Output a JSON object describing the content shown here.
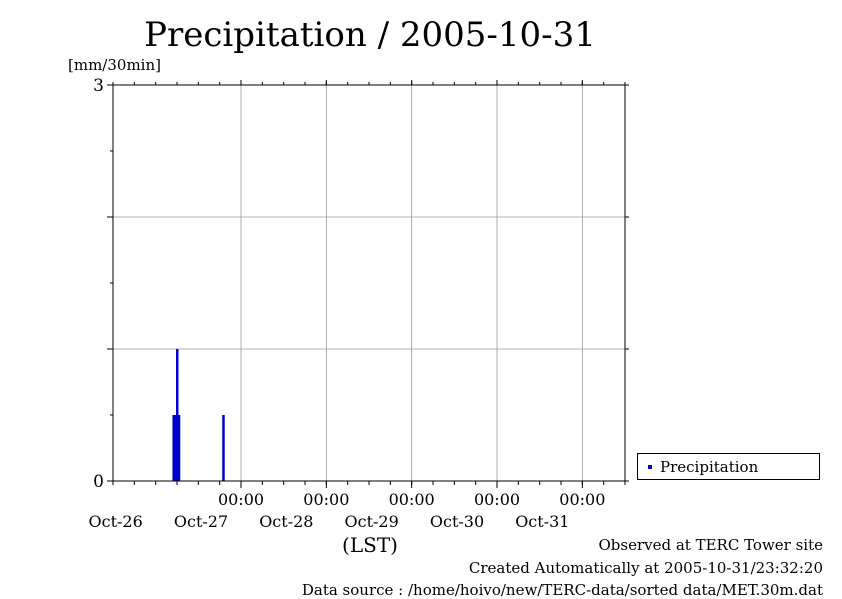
{
  "chart_data": {
    "type": "bar",
    "title": "Precipitation / 2005-10-31",
    "ylabel": "[mm/30min]",
    "xlabel": "(LST)",
    "ylim": [
      0,
      3
    ],
    "y_ticks_labeled": [
      "0",
      "3"
    ],
    "x_tick_times": [
      "00:00",
      "00:00",
      "00:00",
      "00:00",
      "00:00"
    ],
    "x_date_labels": [
      "Oct-26",
      "Oct-27",
      "Oct-28",
      "Oct-29",
      "Oct-30",
      "Oct-31"
    ],
    "grid": true,
    "legend_position": "bottom-right, outside plot",
    "series": [
      {
        "name": "Precipitation",
        "color": "#0000cc",
        "points": [
          {
            "x": "2005-10-26T05:00",
            "y": 0.5
          },
          {
            "x": "2005-10-26T05:30",
            "y": 0.5
          },
          {
            "x": "2005-10-26T06:00",
            "y": 1.0
          },
          {
            "x": "2005-10-26T06:30",
            "y": 0.5
          },
          {
            "x": "2005-10-26T19:00",
            "y": 0.5
          }
        ]
      }
    ]
  },
  "footer": {
    "observed": "Observed at TERC Tower site",
    "created": "Created Automatically at 2005-10-31/23:32:20",
    "source": "Data source : /home/hoivo/new/TERC-data/sorted  data/MET.30m.dat"
  }
}
